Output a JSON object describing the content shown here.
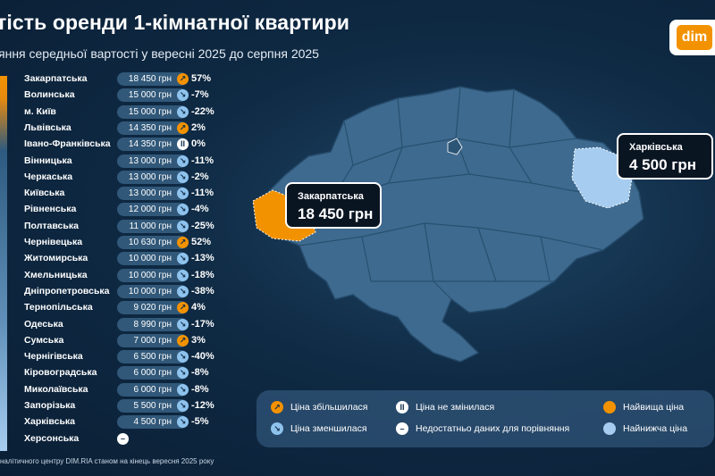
{
  "title": "тість оренди 1-кімнатної квартири",
  "subtitle": "яння середньої вартості у вересні 2025 до серпня 2025",
  "logo": "dim",
  "source": "налітичного центру DIM.RIA станом на кінець вересня 2025 року",
  "colors": {
    "highest": "#f39200",
    "lowest": "#a6cdf0",
    "increase": "#f39200",
    "decrease": "#8ec3ee",
    "map_fill": "#3f6a8f",
    "background": "#0f2a44"
  },
  "chart_data": {
    "type": "table",
    "currency": "грн",
    "rows": [
      {
        "region": "Закарпатська",
        "price": "18 450",
        "value": 18450,
        "change": "57%",
        "dir": "up"
      },
      {
        "region": "Волинська",
        "price": "15 000",
        "value": 15000,
        "change": "-7%",
        "dir": "down"
      },
      {
        "region": "м. Київ",
        "price": "15 000",
        "value": 15000,
        "change": "-22%",
        "dir": "down"
      },
      {
        "region": "Львівська",
        "price": "14 350",
        "value": 14350,
        "change": "2%",
        "dir": "up"
      },
      {
        "region": "Івано-Франківська",
        "price": "14 350",
        "value": 14350,
        "change": "0%",
        "dir": "same"
      },
      {
        "region": "Вінницька",
        "price": "13 000",
        "value": 13000,
        "change": "-11%",
        "dir": "down"
      },
      {
        "region": "Черкаська",
        "price": "13 000",
        "value": 13000,
        "change": "-2%",
        "dir": "down"
      },
      {
        "region": "Київська",
        "price": "13 000",
        "value": 13000,
        "change": "-11%",
        "dir": "down"
      },
      {
        "region": "Рівненська",
        "price": "12 000",
        "value": 12000,
        "change": "-4%",
        "dir": "down"
      },
      {
        "region": "Полтавська",
        "price": "11 000",
        "value": 11000,
        "change": "-25%",
        "dir": "down"
      },
      {
        "region": "Чернівецька",
        "price": "10 630",
        "value": 10630,
        "change": "52%",
        "dir": "up"
      },
      {
        "region": "Житомирська",
        "price": "10 000",
        "value": 10000,
        "change": "-13%",
        "dir": "down"
      },
      {
        "region": "Хмельницька",
        "price": "10 000",
        "value": 10000,
        "change": "-18%",
        "dir": "down"
      },
      {
        "region": "Дніпропетровська",
        "price": "10 000",
        "value": 10000,
        "change": "-38%",
        "dir": "down"
      },
      {
        "region": "Тернопільська",
        "price": "9 020",
        "value": 9020,
        "change": "4%",
        "dir": "up"
      },
      {
        "region": "Одеська",
        "price": "8 990",
        "value": 8990,
        "change": "-17%",
        "dir": "down"
      },
      {
        "region": "Сумська",
        "price": "7 000",
        "value": 7000,
        "change": "3%",
        "dir": "up"
      },
      {
        "region": "Чернігівська",
        "price": "6 500",
        "value": 6500,
        "change": "-40%",
        "dir": "down"
      },
      {
        "region": "Кіровоградська",
        "price": "6 000",
        "value": 6000,
        "change": "-8%",
        "dir": "down"
      },
      {
        "region": "Миколаївська",
        "price": "6 000",
        "value": 6000,
        "change": "-8%",
        "dir": "down"
      },
      {
        "region": "Запорізька",
        "price": "5 500",
        "value": 5500,
        "change": "-12%",
        "dir": "down"
      },
      {
        "region": "Харківська",
        "price": "4 500",
        "value": 4500,
        "change": "-5%",
        "dir": "down"
      },
      {
        "region": "Херсонська",
        "price": "",
        "value": null,
        "change": "",
        "dir": "nodata"
      }
    ]
  },
  "callouts": {
    "highest": {
      "region": "Закарпатська",
      "price": "18 450 грн"
    },
    "lowest": {
      "region": "Харківська",
      "price": "4 500 грн"
    }
  },
  "legend": {
    "up": "Ціна збільшилася",
    "down": "Ціна зменшилася",
    "same": "Ціна не змінилася",
    "nodata": "Недостатньо даних для порівняння",
    "highest": "Найвища ціна",
    "lowest": "Найнижча ціна"
  }
}
